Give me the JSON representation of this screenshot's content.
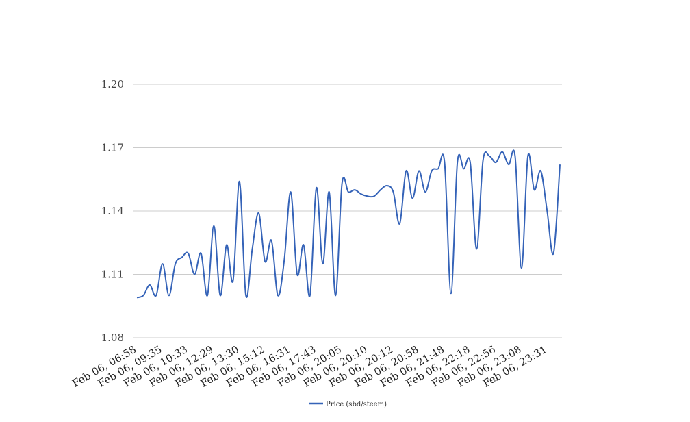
{
  "chart_data": {
    "type": "line",
    "title": "",
    "xlabel": "",
    "ylabel": "",
    "ylim": [
      1.08,
      1.2
    ],
    "y_ticks": [
      "1.20",
      "1.17",
      "1.14",
      "1.11",
      "1.08"
    ],
    "x_tick_labels": [
      "Feb 06, 06:58",
      "Feb 06, 09:35",
      "Feb 06, 10:33",
      "Feb 06, 12:29",
      "Feb 06, 13:30",
      "Feb 06, 15:12",
      "Feb 06, 16:31",
      "Feb 06, 17:43",
      "Feb 06, 20:05",
      "Feb 06, 20:10",
      "Feb 06, 20:12",
      "Feb 06, 20:58",
      "Feb 06, 21:48",
      "Feb 06, 22:18",
      "Feb 06, 22:56",
      "Feb 06, 23:08",
      "Feb 06, 23:31"
    ],
    "grid": true,
    "legend_position": "bottom",
    "color": "#3563b8",
    "series": [
      {
        "name": "Price (sbd/steem)",
        "values": [
          1.099,
          1.1,
          1.105,
          1.1,
          1.115,
          1.1,
          1.115,
          1.118,
          1.12,
          1.11,
          1.12,
          1.1,
          1.133,
          1.1,
          1.124,
          1.107,
          1.154,
          1.1,
          1.122,
          1.139,
          1.116,
          1.126,
          1.1,
          1.117,
          1.149,
          1.11,
          1.124,
          1.1,
          1.151,
          1.115,
          1.149,
          1.1,
          1.153,
          1.149,
          1.15,
          1.148,
          1.147,
          1.147,
          1.15,
          1.152,
          1.149,
          1.134,
          1.159,
          1.146,
          1.159,
          1.149,
          1.159,
          1.16,
          1.163,
          1.101,
          1.163,
          1.16,
          1.163,
          1.122,
          1.164,
          1.166,
          1.163,
          1.168,
          1.162,
          1.166,
          1.113,
          1.166,
          1.15,
          1.159,
          1.14,
          1.12,
          1.162
        ]
      }
    ]
  }
}
